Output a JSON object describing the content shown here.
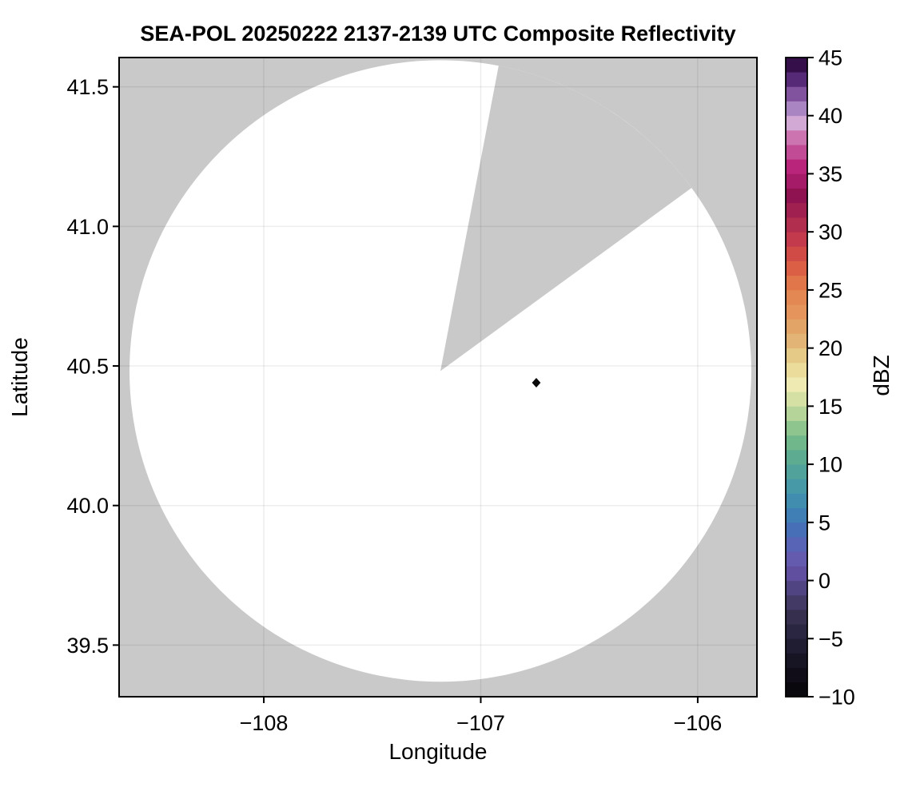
{
  "title": "SEA-POL 20250222 2137-2139 UTC Composite Reflectivity",
  "chart_data": {
    "type": "radar_ppi_map",
    "title": "SEA-POL 20250222 2137-2139 UTC Composite Reflectivity",
    "xlabel": "Longitude",
    "ylabel": "Latitude",
    "xlim": [
      -108.667,
      -105.727
    ],
    "ylim": [
      39.315,
      41.605
    ],
    "x_ticks": [
      -108,
      -107,
      -106
    ],
    "x_tick_labels": [
      "−108",
      "−107",
      "−106"
    ],
    "y_ticks": [
      41.5,
      41.0,
      40.5,
      40.0,
      39.5
    ],
    "y_tick_labels": [
      "41.5",
      "41.0",
      "40.5",
      "40.0",
      "39.5"
    ],
    "grid": {
      "visible": true,
      "color": "rgba(0,0,0,0.07)"
    },
    "radar": {
      "center_lon": -107.186,
      "center_lat": 40.482,
      "range_lon_deg": 1.433,
      "blocked_sector_azimuth_deg": [
        10.8,
        53.9
      ],
      "coverage_fill": "#ffffff",
      "mask_fill": "#c9c9c9"
    },
    "marker": {
      "lon": -106.744,
      "lat": 40.44,
      "shape": "diamond",
      "color": "#0a0a0a"
    },
    "colorbar": {
      "label": "dBZ",
      "min": -10,
      "max": 45,
      "band_step": 1.25,
      "ticks": [
        45,
        40,
        35,
        30,
        25,
        20,
        15,
        10,
        5,
        0,
        -5,
        -10
      ],
      "tick_labels": [
        "45",
        "40",
        "35",
        "30",
        "25",
        "20",
        "15",
        "10",
        "5",
        "0",
        "−5",
        "−10"
      ],
      "band_colors": [
        "#09080c",
        "#100d18",
        "#171424",
        "#201c31",
        "#2a2540",
        "#36304e",
        "#433a66",
        "#514483",
        "#5f4f9e",
        "#655bae",
        "#5864b6",
        "#476fb8",
        "#3f7fb5",
        "#418db0",
        "#4899a8",
        "#52a29c",
        "#5dab90",
        "#70b78c",
        "#8ec48e",
        "#b4d49a",
        "#d5e0a4",
        "#eeeab1",
        "#ecdc9b",
        "#e5c987",
        "#e2b576",
        "#e3a567",
        "#e5945b",
        "#e38852",
        "#e0764a",
        "#da5f45",
        "#d04b46",
        "#c23a4c",
        "#b12e4e",
        "#a02150",
        "#8f1350",
        "#a51b67",
        "#b8257b",
        "#c24b95",
        "#cb74af",
        "#d2a8d4",
        "#a986c1",
        "#81539f",
        "#562a76",
        "#340f4a"
      ]
    },
    "styles": {
      "spine_color": "#000000",
      "spine_width": 2,
      "tick_color": "#000000",
      "tick_length": 8,
      "background": "#ffffff"
    }
  }
}
